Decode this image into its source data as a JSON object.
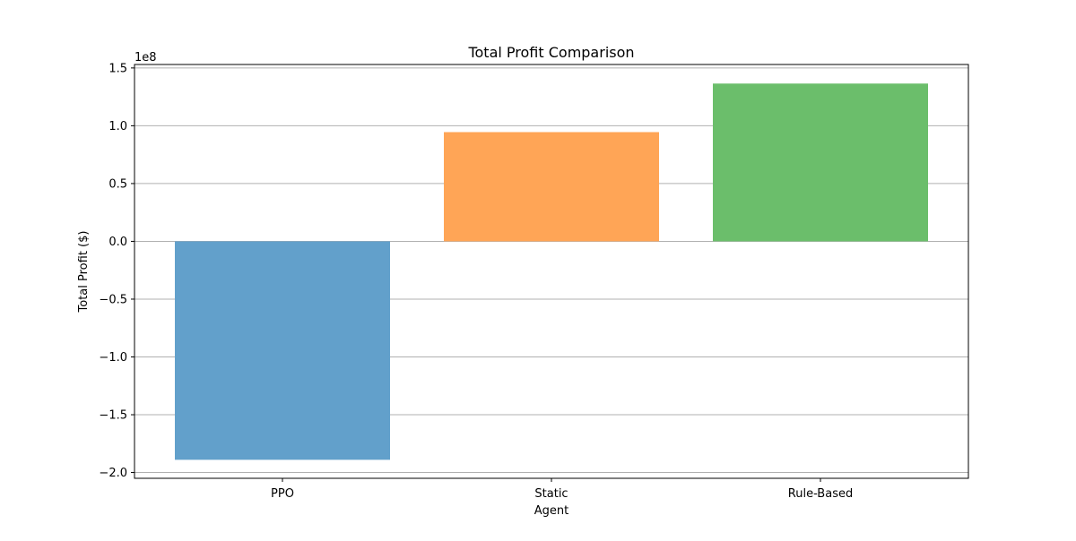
{
  "chart_data": {
    "type": "bar",
    "title": "Total Profit Comparison",
    "xlabel": "Agent",
    "ylabel": "Total Profit ($)",
    "offset_text": "1e8",
    "scale": 100000000,
    "categories": [
      "PPO",
      "Static",
      "Rule-Based"
    ],
    "values": [
      -189000000,
      94500000,
      136500000
    ],
    "colors": [
      "#62a0cb",
      "#ffa556",
      "#6bbe6b"
    ],
    "ylim": [
      -205000000,
      153000000
    ],
    "yticks": [
      -2.0,
      -1.5,
      -1.0,
      -0.5,
      0.0,
      0.5,
      1.0,
      1.5
    ],
    "ytick_labels": [
      "−2.0",
      "−1.5",
      "−1.0",
      "−0.5",
      "0.0",
      "0.5",
      "1.0",
      "1.5"
    ],
    "grid": "y",
    "legend": "none"
  }
}
